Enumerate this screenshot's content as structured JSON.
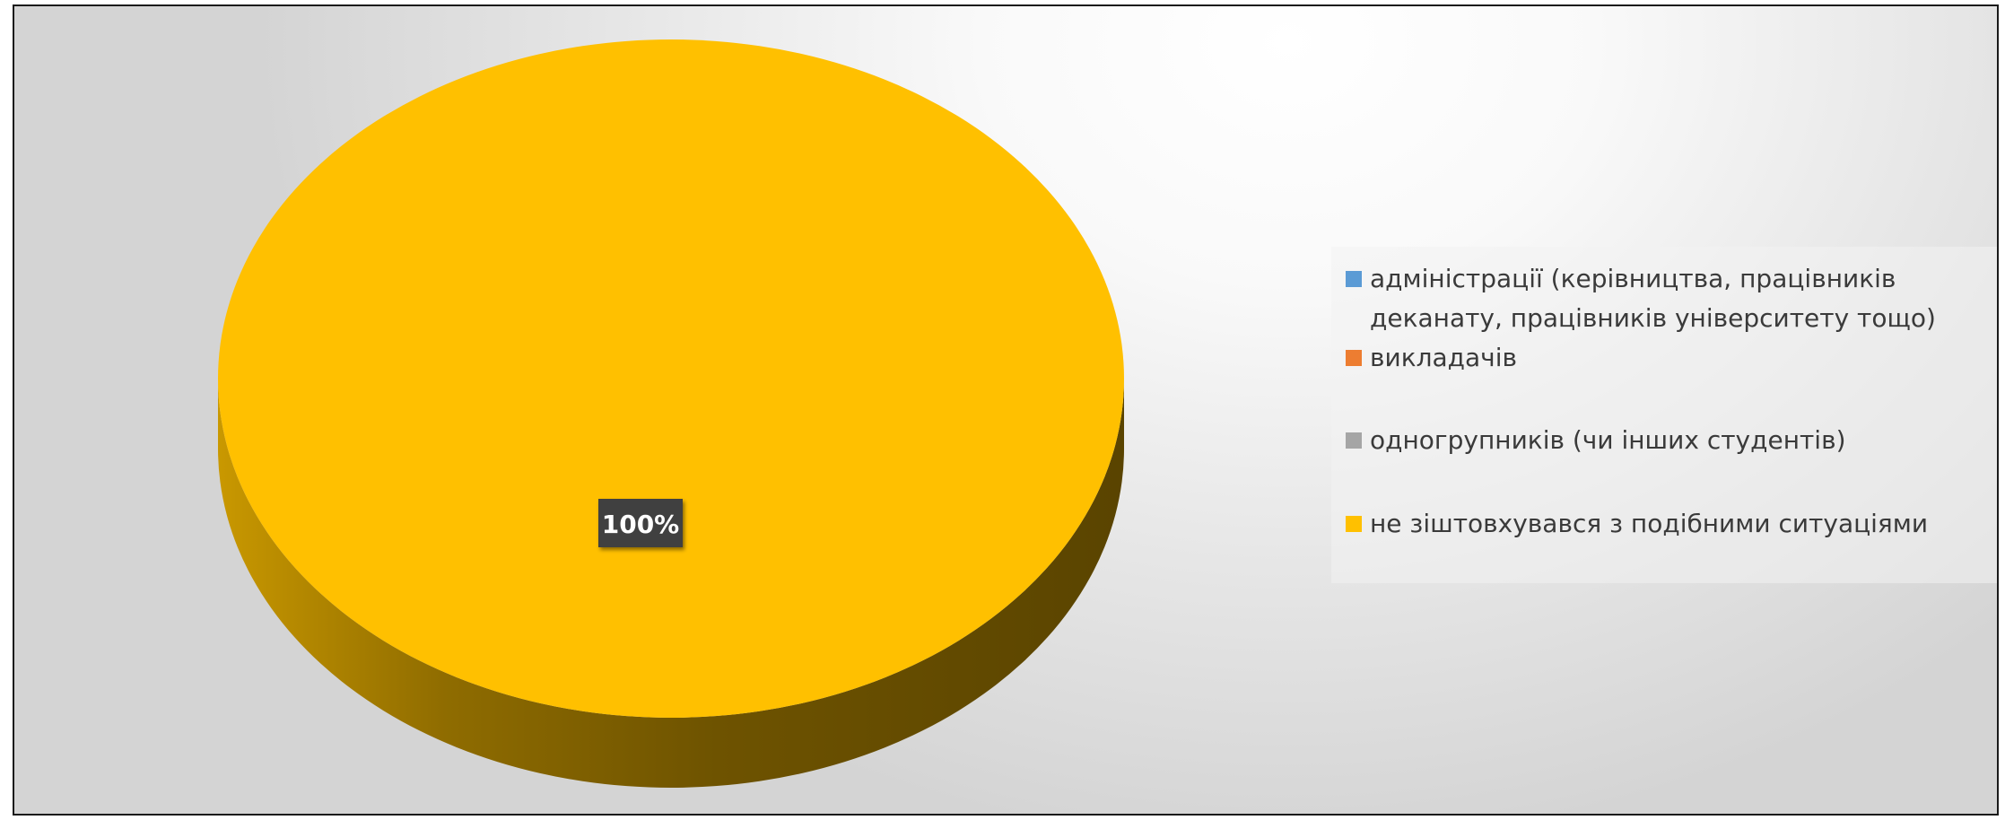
{
  "chart_data": {
    "type": "pie",
    "title": "",
    "categories": [
      "адміністрації (керівництва, працівників деканату, працівників університету тощо)",
      "викладачів",
      "одногрупників (чи інших студентів)",
      "не зіштовхувався з подібними ситуаціями"
    ],
    "values": [
      0,
      0,
      0,
      100
    ],
    "colors": [
      "#5b9bd5",
      "#ed7d31",
      "#a5a5a5",
      "#ffc000"
    ],
    "data_labels": [
      "",
      "",
      "",
      "100%"
    ],
    "legend_position": "right",
    "style": "3d"
  }
}
